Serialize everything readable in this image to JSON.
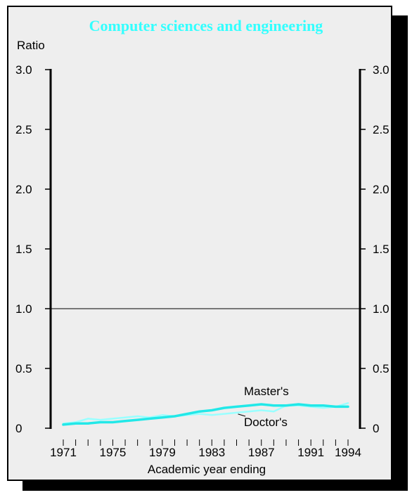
{
  "chart_data": {
    "type": "line",
    "title": "Computer sciences and engineering",
    "ylabel": "Ratio",
    "xlabel": "Academic year ending",
    "ylim": [
      0,
      3.0
    ],
    "yticks": [
      0,
      0.5,
      1.0,
      1.5,
      2.0,
      2.5,
      3.0
    ],
    "ytick_labels": [
      "0",
      "0.5",
      "1.0",
      "1.5",
      "2.0",
      "2.5",
      "3.0"
    ],
    "xlim": [
      1971,
      1994
    ],
    "xticks_major": [
      1971,
      1975,
      1979,
      1983,
      1987,
      1991,
      1994
    ],
    "xtick_labels": [
      "1971",
      "1975",
      "1979",
      "1983",
      "1987",
      "1991",
      "1994"
    ],
    "reference_line": 1.0,
    "grid": false,
    "series": [
      {
        "name": "Master's",
        "x": [
          1971,
          1972,
          1973,
          1974,
          1975,
          1976,
          1977,
          1978,
          1979,
          1980,
          1981,
          1982,
          1983,
          1984,
          1985,
          1986,
          1987,
          1988,
          1989,
          1990,
          1991,
          1992,
          1993,
          1994
        ],
        "values": [
          0.03,
          0.04,
          0.04,
          0.05,
          0.05,
          0.06,
          0.07,
          0.08,
          0.09,
          0.1,
          0.12,
          0.14,
          0.15,
          0.17,
          0.18,
          0.19,
          0.2,
          0.19,
          0.19,
          0.2,
          0.19,
          0.19,
          0.18,
          0.18
        ]
      },
      {
        "name": "Doctor's",
        "x": [
          1971,
          1972,
          1973,
          1974,
          1975,
          1976,
          1977,
          1978,
          1979,
          1980,
          1981,
          1982,
          1983,
          1984,
          1985,
          1986,
          1987,
          1988,
          1989,
          1990,
          1991,
          1992,
          1993,
          1994
        ],
        "values": [
          0.04,
          0.05,
          0.08,
          0.07,
          0.08,
          0.09,
          0.1,
          0.09,
          0.11,
          0.1,
          0.11,
          0.12,
          0.11,
          0.12,
          0.13,
          0.14,
          0.15,
          0.14,
          0.19,
          0.19,
          0.18,
          0.17,
          0.18,
          0.21
        ]
      }
    ],
    "annotations": [
      {
        "text": "Master's",
        "series": "Master's"
      },
      {
        "text": "Doctor's",
        "series": "Doctor's"
      }
    ],
    "colors": {
      "title": "#33ffff",
      "masters": "#22e8e8",
      "doctors": "#99ffff",
      "background": "#eeeeee"
    }
  }
}
